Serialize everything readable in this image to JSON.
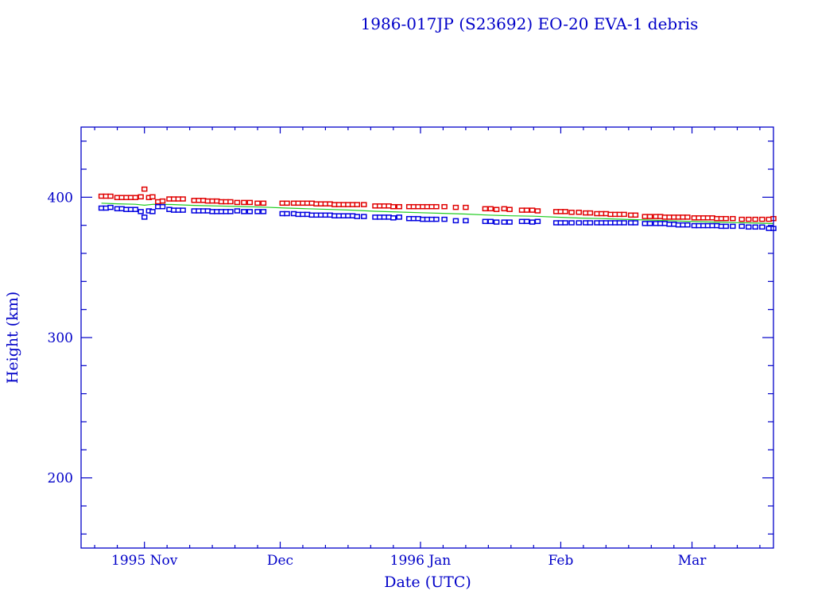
{
  "chart_data": {
    "type": "scatter",
    "title": "1986-017JP (S23692) EO-20 EVA-1 debris",
    "xlabel": "Date (UTC)",
    "ylabel": "Height (km)",
    "x_units": "days since 1995-10-18",
    "xlim": [
      0,
      153
    ],
    "ylim": [
      150,
      450
    ],
    "x_ticks": [
      {
        "day": 14,
        "label": "1995 Nov"
      },
      {
        "day": 44,
        "label": "Dec"
      },
      {
        "day": 75,
        "label": "1996 Jan"
      },
      {
        "day": 106,
        "label": "Feb"
      },
      {
        "day": 135,
        "label": "Mar"
      }
    ],
    "y_ticks": [
      {
        "value": 200,
        "label": "200"
      },
      {
        "value": 300,
        "label": "300"
      },
      {
        "value": 400,
        "label": "400"
      }
    ],
    "grid": false,
    "colors": {
      "axis": "#0000c8",
      "apogee": "#e00000",
      "perigee": "#0000e0",
      "mean": "#22cc22"
    },
    "series": [
      {
        "name": "apogee",
        "style": "markers",
        "points": [
          [
            4.5,
            400.5
          ],
          [
            5.5,
            400.5
          ],
          [
            6.5,
            400.5
          ],
          [
            8,
            399.5
          ],
          [
            9,
            399.5
          ],
          [
            10,
            399.5
          ],
          [
            11,
            399.5
          ],
          [
            12,
            399.5
          ],
          [
            13.2,
            400
          ],
          [
            14,
            405.5
          ],
          [
            15,
            399.5
          ],
          [
            15.8,
            400
          ],
          [
            17,
            396.5
          ],
          [
            18,
            397
          ],
          [
            19.5,
            398.5
          ],
          [
            20.5,
            398.5
          ],
          [
            21.5,
            398.5
          ],
          [
            22.5,
            398.5
          ],
          [
            25,
            397.5
          ],
          [
            26,
            397.5
          ],
          [
            27,
            397.5
          ],
          [
            28,
            397
          ],
          [
            29,
            397
          ],
          [
            30,
            397
          ],
          [
            31,
            396.5
          ],
          [
            32,
            396.5
          ],
          [
            33,
            396.5
          ],
          [
            34.5,
            396
          ],
          [
            36,
            396
          ],
          [
            37.3,
            396
          ],
          [
            39,
            395.5
          ],
          [
            40.3,
            395.5
          ],
          [
            44.5,
            395.5
          ],
          [
            45.5,
            395.5
          ],
          [
            47,
            395.5
          ],
          [
            48,
            395.5
          ],
          [
            49,
            395.5
          ],
          [
            50,
            395.5
          ],
          [
            51,
            395.5
          ],
          [
            52,
            395
          ],
          [
            53,
            395
          ],
          [
            54,
            395
          ],
          [
            55,
            395
          ],
          [
            56,
            394.5
          ],
          [
            57,
            394.5
          ],
          [
            58,
            394.5
          ],
          [
            59,
            394.5
          ],
          [
            60,
            394.5
          ],
          [
            61,
            394.5
          ],
          [
            62.5,
            394.5
          ],
          [
            65,
            393.5
          ],
          [
            66,
            393.5
          ],
          [
            67,
            393.5
          ],
          [
            68,
            393.5
          ],
          [
            69,
            393
          ],
          [
            70.3,
            393
          ],
          [
            72.5,
            393
          ],
          [
            73.5,
            393
          ],
          [
            74.5,
            393
          ],
          [
            75.5,
            393
          ],
          [
            76.5,
            393
          ],
          [
            77.5,
            393
          ],
          [
            78.5,
            393
          ],
          [
            80.3,
            393
          ],
          [
            82.8,
            392.5
          ],
          [
            85,
            392.5
          ],
          [
            89.3,
            391.5
          ],
          [
            90.5,
            391.5
          ],
          [
            91.8,
            391
          ],
          [
            93.5,
            391.5
          ],
          [
            94.7,
            391
          ],
          [
            97.4,
            390.5
          ],
          [
            98.5,
            390.5
          ],
          [
            99.7,
            390.5
          ],
          [
            100.9,
            390
          ],
          [
            105,
            389.5
          ],
          [
            106,
            389.5
          ],
          [
            107,
            389.5
          ],
          [
            108.4,
            389
          ],
          [
            110,
            389
          ],
          [
            111.5,
            388.5
          ],
          [
            112.5,
            388.5
          ],
          [
            114,
            388
          ],
          [
            115,
            388
          ],
          [
            116,
            388
          ],
          [
            117,
            387.5
          ],
          [
            118,
            387.5
          ],
          [
            119,
            387.5
          ],
          [
            120,
            387.5
          ],
          [
            121.5,
            387
          ],
          [
            122.5,
            387
          ],
          [
            124.6,
            386
          ],
          [
            125.7,
            386
          ],
          [
            127,
            386
          ],
          [
            128,
            386
          ],
          [
            129,
            385.5
          ],
          [
            130,
            385.5
          ],
          [
            131,
            385.5
          ],
          [
            132,
            385.5
          ],
          [
            133,
            385.5
          ],
          [
            134,
            385.5
          ],
          [
            135.5,
            385
          ],
          [
            136.5,
            385
          ],
          [
            137.5,
            385
          ],
          [
            138.5,
            385
          ],
          [
            139.5,
            385
          ],
          [
            140.5,
            384.5
          ],
          [
            141.5,
            384.5
          ],
          [
            142.5,
            384.5
          ],
          [
            144,
            384.5
          ],
          [
            146,
            384
          ],
          [
            147.5,
            384
          ],
          [
            149,
            384
          ],
          [
            150.5,
            384
          ],
          [
            152,
            384
          ],
          [
            153,
            384.5
          ]
        ]
      },
      {
        "name": "perigee",
        "style": "markers",
        "points": [
          [
            4.5,
            392
          ],
          [
            5.5,
            392
          ],
          [
            6.5,
            392.5
          ],
          [
            8,
            391.5
          ],
          [
            9,
            391.5
          ],
          [
            10,
            391
          ],
          [
            11,
            391
          ],
          [
            12,
            391
          ],
          [
            13.2,
            389.5
          ],
          [
            14,
            385.5
          ],
          [
            15,
            390
          ],
          [
            15.8,
            389.5
          ],
          [
            17,
            393
          ],
          [
            18,
            393
          ],
          [
            19.5,
            391
          ],
          [
            20.5,
            390.5
          ],
          [
            21.5,
            390.5
          ],
          [
            22.5,
            390.5
          ],
          [
            25,
            390
          ],
          [
            26,
            390
          ],
          [
            27,
            390
          ],
          [
            28,
            390
          ],
          [
            29,
            389.5
          ],
          [
            30,
            389.5
          ],
          [
            31,
            389.5
          ],
          [
            32,
            389.5
          ],
          [
            33,
            389.5
          ],
          [
            34.5,
            390
          ],
          [
            36,
            389.5
          ],
          [
            37.3,
            389.5
          ],
          [
            39,
            389.5
          ],
          [
            40.3,
            389.5
          ],
          [
            44.5,
            388
          ],
          [
            45.5,
            388
          ],
          [
            47,
            388
          ],
          [
            48,
            387.5
          ],
          [
            49,
            387.5
          ],
          [
            50,
            387.5
          ],
          [
            51,
            387
          ],
          [
            52,
            387
          ],
          [
            53,
            387
          ],
          [
            54,
            387
          ],
          [
            55,
            387
          ],
          [
            56,
            386.5
          ],
          [
            57,
            386.5
          ],
          [
            58,
            386.5
          ],
          [
            59,
            386.5
          ],
          [
            60,
            386.5
          ],
          [
            61,
            386
          ],
          [
            62.5,
            386
          ],
          [
            65,
            385.5
          ],
          [
            66,
            385.5
          ],
          [
            67,
            385.5
          ],
          [
            68,
            385.5
          ],
          [
            69,
            385
          ],
          [
            70.3,
            385.5
          ],
          [
            72.5,
            384.5
          ],
          [
            73.5,
            384.5
          ],
          [
            74.5,
            384.5
          ],
          [
            75.5,
            384
          ],
          [
            76.5,
            384
          ],
          [
            77.5,
            384
          ],
          [
            78.5,
            384
          ],
          [
            80.3,
            384
          ],
          [
            82.8,
            383
          ],
          [
            85,
            383
          ],
          [
            89.3,
            382.5
          ],
          [
            90.5,
            382.5
          ],
          [
            91.8,
            382
          ],
          [
            93.5,
            382
          ],
          [
            94.7,
            382
          ],
          [
            97.4,
            382.5
          ],
          [
            98.5,
            382.5
          ],
          [
            99.7,
            382
          ],
          [
            100.9,
            382.5
          ],
          [
            105,
            381.5
          ],
          [
            106,
            381.5
          ],
          [
            107,
            381.5
          ],
          [
            108.4,
            381.5
          ],
          [
            110,
            381.5
          ],
          [
            111.5,
            381.5
          ],
          [
            112.5,
            381.5
          ],
          [
            114,
            381.5
          ],
          [
            115,
            381.5
          ],
          [
            116,
            381.5
          ],
          [
            117,
            381.5
          ],
          [
            118,
            381.5
          ],
          [
            119,
            381.5
          ],
          [
            120,
            381.5
          ],
          [
            121.5,
            381.5
          ],
          [
            122.5,
            381.5
          ],
          [
            124.6,
            381
          ],
          [
            125.7,
            381
          ],
          [
            127,
            381
          ],
          [
            128,
            381
          ],
          [
            129,
            381
          ],
          [
            130,
            380.5
          ],
          [
            131,
            380.5
          ],
          [
            132,
            380
          ],
          [
            133,
            380
          ],
          [
            134,
            380
          ],
          [
            135.5,
            379.5
          ],
          [
            136.5,
            379.5
          ],
          [
            137.5,
            379.5
          ],
          [
            138.5,
            379.5
          ],
          [
            139.5,
            379.5
          ],
          [
            140.5,
            379.5
          ],
          [
            141.5,
            379
          ],
          [
            142.5,
            379
          ],
          [
            144,
            379
          ],
          [
            146,
            379
          ],
          [
            147.5,
            378.5
          ],
          [
            149,
            378.5
          ],
          [
            150.5,
            378.5
          ],
          [
            152,
            377.5
          ],
          [
            153,
            377.5
          ]
        ]
      },
      {
        "name": "mean",
        "style": "line",
        "points": [
          [
            4.5,
            395.8
          ],
          [
            8,
            395.3
          ],
          [
            12,
            395
          ],
          [
            14,
            394.3
          ],
          [
            16,
            395
          ],
          [
            20,
            394.8
          ],
          [
            25,
            394.2
          ],
          [
            30,
            393.8
          ],
          [
            35,
            393.4
          ],
          [
            40,
            393
          ],
          [
            45,
            392.3
          ],
          [
            50,
            391.8
          ],
          [
            55,
            391.3
          ],
          [
            60,
            390.8
          ],
          [
            65,
            390
          ],
          [
            70,
            389.5
          ],
          [
            75,
            389
          ],
          [
            80,
            388.5
          ],
          [
            85,
            388
          ],
          [
            90,
            387.3
          ],
          [
            95,
            386.8
          ],
          [
            100,
            386.5
          ],
          [
            105,
            385.8
          ],
          [
            110,
            385.2
          ],
          [
            115,
            384.8
          ],
          [
            120,
            384.3
          ],
          [
            125,
            383.8
          ],
          [
            130,
            383.3
          ],
          [
            135,
            382.7
          ],
          [
            140,
            382.3
          ],
          [
            145,
            381.9
          ],
          [
            150,
            381.5
          ],
          [
            153,
            381.2
          ]
        ]
      }
    ]
  }
}
